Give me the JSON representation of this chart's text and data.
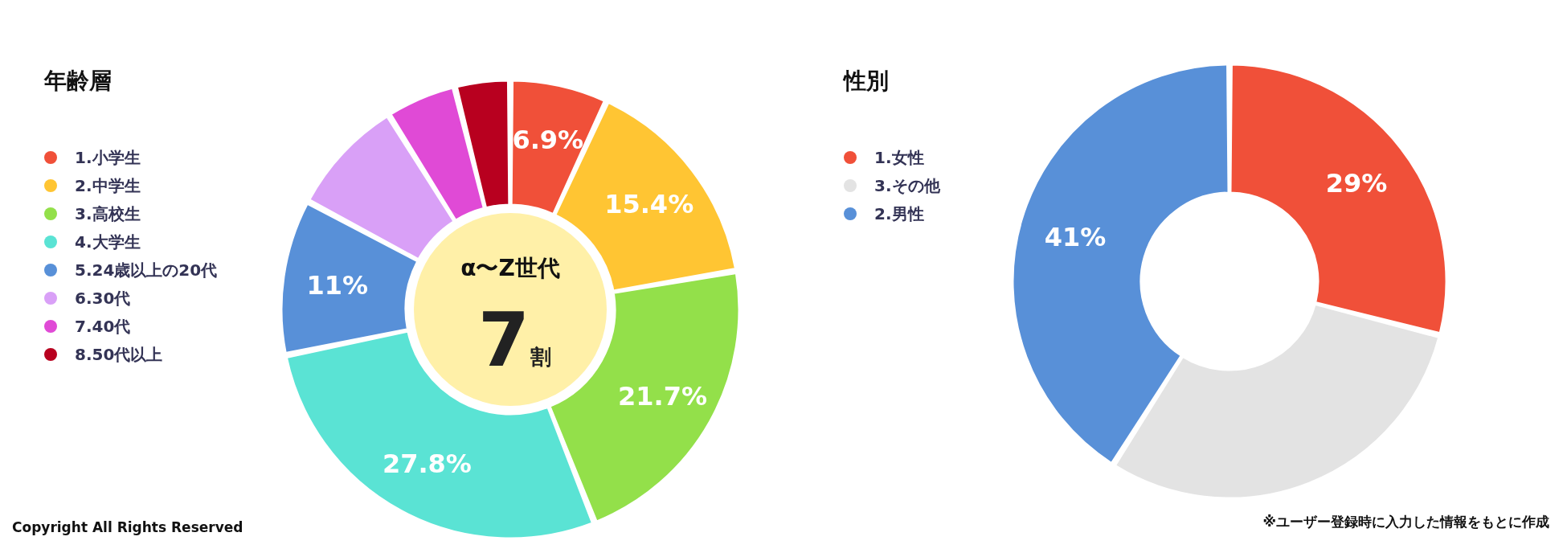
{
  "chart_data": [
    {
      "type": "donut",
      "title": "年齢層",
      "legend": "left",
      "categories": [
        "1.小学生",
        "2.中学生",
        "3.高校生",
        "4.大学生",
        "5.24歳以上の20代",
        "6.30代",
        "7.40代",
        "8.50代以上"
      ],
      "values": [
        6.9,
        15.4,
        21.7,
        27.8,
        11,
        8.3,
        5,
        3.9
      ],
      "colors": [
        "#f05039",
        "#ffc533",
        "#93e04a",
        "#5ae3d4",
        "#5890d8",
        "#d9a0f7",
        "#e04ad6",
        "#b8001f"
      ],
      "value_labels": [
        "6.9%",
        "15.4%",
        "21.7%",
        "27.8%",
        "11%",
        null,
        null,
        null
      ],
      "annotations": [
        "α〜Z世代",
        "7割",
        "Copyright All Rights Reserved"
      ]
    },
    {
      "type": "donut",
      "title": "性別",
      "legend": "left",
      "categories": [
        "1.女性",
        "3.その他",
        "2.男性"
      ],
      "values": [
        29,
        30,
        41
      ],
      "colors": [
        "#f05039",
        "#e3e3e3",
        "#5890d8"
      ],
      "value_labels": [
        "29%",
        null,
        "41%"
      ],
      "annotations": [
        "※ユーザー登録時に入力した情報をもとに作成"
      ]
    }
  ]
}
